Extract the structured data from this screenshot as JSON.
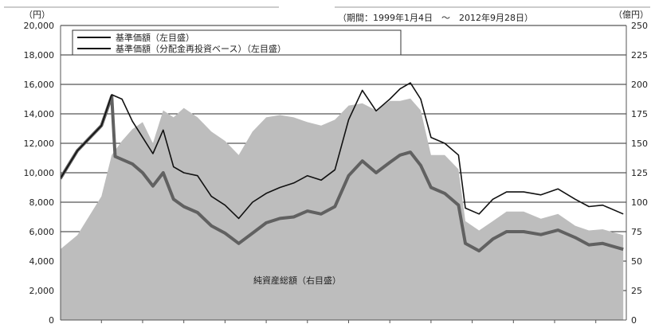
{
  "chart_data": {
    "type": "area",
    "x_range": [
      "1999-01-04",
      "2012-09-28"
    ],
    "period_label": "（期間：1999年1月4日　～　2012年9月28日）",
    "left_axis": {
      "unit_label": "（円）",
      "ylim": [
        0,
        20000
      ],
      "ticks": [
        "0",
        "2,000",
        "4,000",
        "6,000",
        "8,000",
        "10,000",
        "12,000",
        "14,000",
        "16,000",
        "18,000",
        "20,000"
      ]
    },
    "right_axis": {
      "unit_label": "（億円）",
      "ylim": [
        0,
        250
      ],
      "ticks": [
        "0",
        "25",
        "50",
        "75",
        "100",
        "125",
        "150",
        "175",
        "200",
        "225",
        "250"
      ]
    },
    "legend_placement": "top-left",
    "grid": "horizontal",
    "annotation_label": "純資産総額（右目盛）",
    "series": [
      {
        "name": "基準価額（左目盛）",
        "axis": "left",
        "style": "black thin line",
        "color": "#111111",
        "points": [
          [
            "1999-01",
            9600
          ],
          [
            "1999-06",
            11500
          ],
          [
            "2000-01",
            13200
          ],
          [
            "2000-04",
            15300
          ],
          [
            "2000-07",
            15000
          ],
          [
            "2000-10",
            13500
          ],
          [
            "2001-01",
            12400
          ],
          [
            "2001-04",
            11300
          ],
          [
            "2001-07",
            12900
          ],
          [
            "2001-10",
            10400
          ],
          [
            "2002-01",
            10000
          ],
          [
            "2002-05",
            9800
          ],
          [
            "2002-09",
            8400
          ],
          [
            "2003-01",
            7800
          ],
          [
            "2003-05",
            6900
          ],
          [
            "2003-09",
            8000
          ],
          [
            "2004-01",
            8600
          ],
          [
            "2004-05",
            9000
          ],
          [
            "2004-09",
            9300
          ],
          [
            "2005-01",
            9800
          ],
          [
            "2005-05",
            9500
          ],
          [
            "2005-09",
            10200
          ],
          [
            "2006-01",
            13600
          ],
          [
            "2006-05",
            15600
          ],
          [
            "2006-09",
            14200
          ],
          [
            "2007-01",
            15000
          ],
          [
            "2007-04",
            15700
          ],
          [
            "2007-07",
            16100
          ],
          [
            "2007-10",
            15000
          ],
          [
            "2008-01",
            12400
          ],
          [
            "2008-05",
            12000
          ],
          [
            "2008-09",
            11200
          ],
          [
            "2008-11",
            7600
          ],
          [
            "2009-03",
            7200
          ],
          [
            "2009-07",
            8200
          ],
          [
            "2009-11",
            8700
          ],
          [
            "2010-04",
            8700
          ],
          [
            "2010-09",
            8500
          ],
          [
            "2011-02",
            8900
          ],
          [
            "2011-07",
            8200
          ],
          [
            "2011-11",
            7700
          ],
          [
            "2012-03",
            7800
          ],
          [
            "2012-09",
            7200
          ]
        ]
      },
      {
        "name": "基準価額（分配金再投資ベース）（左目盛）",
        "axis": "left",
        "style": "dark gray thick line",
        "color": "#616161",
        "points": [
          [
            "1999-01",
            9600
          ],
          [
            "1999-06",
            11500
          ],
          [
            "2000-01",
            13200
          ],
          [
            "2000-04",
            15200
          ],
          [
            "2000-05",
            11100
          ],
          [
            "2000-10",
            10600
          ],
          [
            "2001-01",
            10000
          ],
          [
            "2001-04",
            9100
          ],
          [
            "2001-07",
            10000
          ],
          [
            "2001-10",
            8200
          ],
          [
            "2002-01",
            7700
          ],
          [
            "2002-05",
            7300
          ],
          [
            "2002-09",
            6400
          ],
          [
            "2003-01",
            5900
          ],
          [
            "2003-05",
            5200
          ],
          [
            "2003-09",
            5900
          ],
          [
            "2004-01",
            6600
          ],
          [
            "2004-05",
            6900
          ],
          [
            "2004-09",
            7000
          ],
          [
            "2005-01",
            7400
          ],
          [
            "2005-05",
            7200
          ],
          [
            "2005-09",
            7700
          ],
          [
            "2006-01",
            9800
          ],
          [
            "2006-05",
            10800
          ],
          [
            "2006-09",
            10000
          ],
          [
            "2007-01",
            10700
          ],
          [
            "2007-04",
            11200
          ],
          [
            "2007-07",
            11400
          ],
          [
            "2007-10",
            10500
          ],
          [
            "2008-01",
            9000
          ],
          [
            "2008-05",
            8600
          ],
          [
            "2008-09",
            7800
          ],
          [
            "2008-11",
            5200
          ],
          [
            "2009-03",
            4700
          ],
          [
            "2009-07",
            5500
          ],
          [
            "2009-11",
            6000
          ],
          [
            "2010-04",
            6000
          ],
          [
            "2010-09",
            5800
          ],
          [
            "2011-02",
            6100
          ],
          [
            "2011-07",
            5600
          ],
          [
            "2011-11",
            5100
          ],
          [
            "2012-03",
            5200
          ],
          [
            "2012-09",
            4800
          ]
        ]
      },
      {
        "name": "純資産総額（右目盛）",
        "axis": "right",
        "style": "light gray filled area",
        "color": "#bdbdbd",
        "points": [
          [
            "1999-01",
            60
          ],
          [
            "1999-06",
            72
          ],
          [
            "2000-01",
            105
          ],
          [
            "2000-04",
            140
          ],
          [
            "2000-07",
            152
          ],
          [
            "2000-10",
            162
          ],
          [
            "2001-01",
            168
          ],
          [
            "2001-04",
            150
          ],
          [
            "2001-07",
            178
          ],
          [
            "2001-10",
            172
          ],
          [
            "2002-01",
            180
          ],
          [
            "2002-05",
            172
          ],
          [
            "2002-09",
            160
          ],
          [
            "2003-01",
            152
          ],
          [
            "2003-05",
            140
          ],
          [
            "2003-09",
            160
          ],
          [
            "2004-01",
            172
          ],
          [
            "2004-05",
            174
          ],
          [
            "2004-09",
            172
          ],
          [
            "2005-01",
            168
          ],
          [
            "2005-05",
            165
          ],
          [
            "2005-09",
            170
          ],
          [
            "2006-01",
            182
          ],
          [
            "2006-05",
            184
          ],
          [
            "2006-09",
            178
          ],
          [
            "2007-01",
            186
          ],
          [
            "2007-04",
            186
          ],
          [
            "2007-07",
            188
          ],
          [
            "2007-10",
            178
          ],
          [
            "2008-01",
            140
          ],
          [
            "2008-05",
            140
          ],
          [
            "2008-09",
            128
          ],
          [
            "2008-11",
            84
          ],
          [
            "2009-03",
            76
          ],
          [
            "2009-07",
            84
          ],
          [
            "2009-11",
            92
          ],
          [
            "2010-04",
            92
          ],
          [
            "2010-09",
            86
          ],
          [
            "2011-02",
            90
          ],
          [
            "2011-07",
            80
          ],
          [
            "2011-11",
            76
          ],
          [
            "2012-03",
            77
          ],
          [
            "2012-09",
            72
          ]
        ]
      }
    ]
  }
}
